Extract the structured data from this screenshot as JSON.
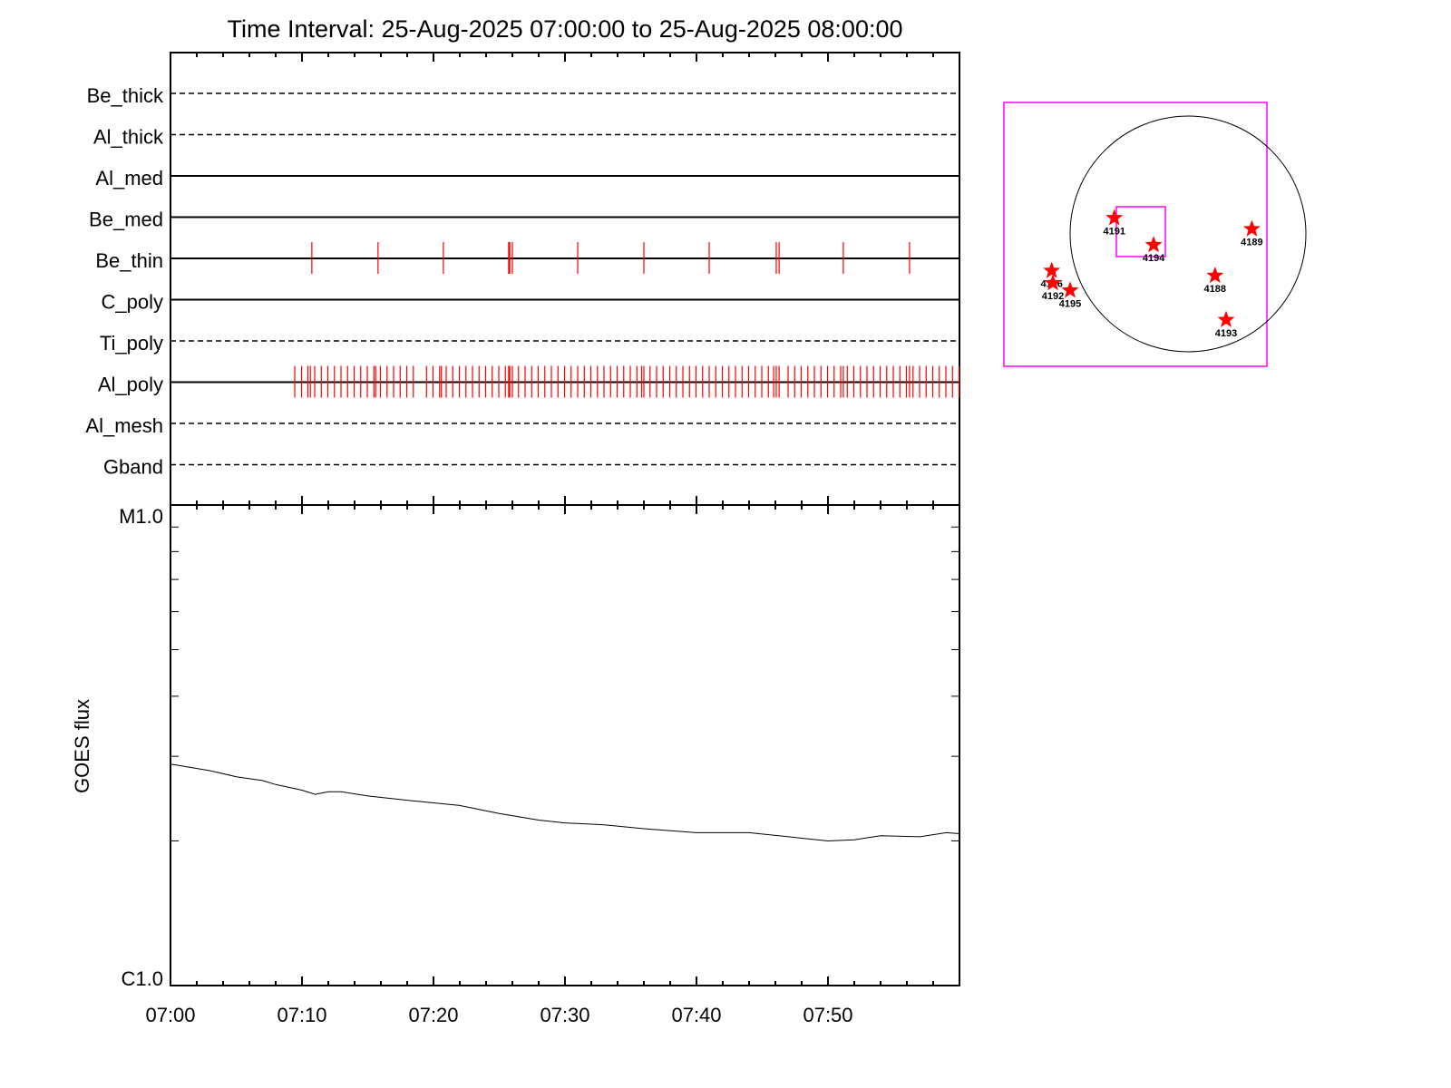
{
  "chart_data": [
    {
      "type": "event-raster",
      "title": "Time Interval: 25-Aug-2025 07:00:00 to 25-Aug-2025 08:00:00",
      "x_range": [
        "07:00",
        "08:00"
      ],
      "event_color": "#ff0000",
      "rows": [
        {
          "label": "Be_thick",
          "style": "dashed",
          "events": []
        },
        {
          "label": "Al_thick",
          "style": "dashed",
          "events": []
        },
        {
          "label": "Al_med",
          "style": "solid",
          "events": []
        },
        {
          "label": "Be_med",
          "style": "solid",
          "events": []
        },
        {
          "label": "Be_thin",
          "style": "solid",
          "events": [
            "07:10:45",
            "07:15:47",
            "07:20:45",
            "07:25:43",
            "07:25:48",
            "07:26:00",
            "07:30:58",
            "07:36:00",
            "07:40:58",
            "07:46:04",
            "07:46:17",
            "07:51:10",
            "07:56:12"
          ]
        },
        {
          "label": "C_poly",
          "style": "solid",
          "events": []
        },
        {
          "label": "Ti_poly",
          "style": "dashed",
          "events": []
        },
        {
          "label": "Al_poly",
          "style": "solid",
          "events": [
            "07:09:27",
            "07:09:58",
            "07:10:27",
            "07:10:38",
            "07:10:58",
            "07:11:28",
            "07:11:58",
            "07:12:28",
            "07:12:58",
            "07:13:28",
            "07:13:58",
            "07:14:28",
            "07:14:58",
            "07:15:28",
            "07:15:36",
            "07:15:58",
            "07:16:28",
            "07:16:58",
            "07:17:28",
            "07:17:58",
            "07:18:28",
            "07:19:28",
            "07:19:58",
            "07:20:28",
            "07:20:36",
            "07:20:58",
            "07:21:28",
            "07:21:58",
            "07:22:28",
            "07:22:58",
            "07:23:28",
            "07:23:58",
            "07:24:28",
            "07:24:58",
            "07:25:28",
            "07:25:43",
            "07:25:48",
            "07:26:00",
            "07:26:28",
            "07:26:58",
            "07:27:28",
            "07:27:58",
            "07:28:28",
            "07:28:58",
            "07:29:28",
            "07:29:58",
            "07:30:28",
            "07:30:58",
            "07:31:28",
            "07:31:58",
            "07:32:28",
            "07:32:58",
            "07:33:28",
            "07:33:58",
            "07:34:28",
            "07:34:58",
            "07:35:28",
            "07:35:50",
            "07:36:00",
            "07:36:28",
            "07:36:58",
            "07:37:28",
            "07:37:58",
            "07:38:28",
            "07:38:58",
            "07:39:28",
            "07:39:58",
            "07:40:28",
            "07:40:58",
            "07:41:28",
            "07:41:58",
            "07:42:28",
            "07:42:58",
            "07:43:28",
            "07:43:58",
            "07:44:28",
            "07:44:58",
            "07:45:28",
            "07:45:52",
            "07:46:04",
            "07:46:17",
            "07:46:58",
            "07:47:28",
            "07:47:58",
            "07:48:28",
            "07:48:58",
            "07:49:28",
            "07:49:58",
            "07:50:28",
            "07:50:58",
            "07:51:10",
            "07:51:28",
            "07:51:58",
            "07:52:28",
            "07:52:58",
            "07:53:28",
            "07:53:58",
            "07:54:28",
            "07:54:58",
            "07:55:28",
            "07:55:58",
            "07:56:12",
            "07:56:28",
            "07:56:58",
            "07:57:28",
            "07:57:58",
            "07:58:28",
            "07:58:58",
            "07:59:28",
            "07:59:58"
          ]
        },
        {
          "label": "Al_mesh",
          "style": "dashed",
          "events": []
        },
        {
          "label": "Gband",
          "style": "dashed",
          "events": []
        }
      ]
    },
    {
      "type": "line",
      "ylabel": "GOES flux",
      "y_scale": "log",
      "ylim": [
        1e-06,
        1e-05
      ],
      "y_tick_labels": [
        {
          "value": 1e-05,
          "label": "M1.0"
        },
        {
          "value": 1e-06,
          "label": "C1.0"
        }
      ],
      "x_range": [
        "07:00",
        "08:00"
      ],
      "x_tick_labels": [
        "07:00",
        "07:10",
        "07:20",
        "07:30",
        "07:40",
        "07:50"
      ],
      "line_color": "#000000",
      "x": [
        "07:00",
        "07:03",
        "07:05",
        "07:07",
        "07:08",
        "07:10",
        "07:11",
        "07:12",
        "07:13",
        "07:15",
        "07:18",
        "07:22",
        "07:25",
        "07:28",
        "07:30",
        "07:33",
        "07:36",
        "07:40",
        "07:44",
        "07:47",
        "07:50",
        "07:52",
        "07:54",
        "07:57",
        "07:59",
        "08:00"
      ],
      "y": [
        2.89e-06,
        2.8e-06,
        2.72e-06,
        2.67e-06,
        2.62e-06,
        2.55e-06,
        2.5e-06,
        2.53e-06,
        2.53e-06,
        2.48e-06,
        2.43e-06,
        2.37e-06,
        2.28e-06,
        2.21e-06,
        2.18e-06,
        2.16e-06,
        2.12e-06,
        2.08e-06,
        2.08e-06,
        2.04e-06,
        2e-06,
        2.01e-06,
        2.05e-06,
        2.04e-06,
        2.08e-06,
        2.07e-06
      ]
    }
  ],
  "sun_map": {
    "frame_color": "#ff00ff",
    "marker_color": "#ff0000",
    "regions": [
      {
        "label": "4191",
        "x_arcsec": -600,
        "y_arcsec": 130
      },
      {
        "label": "4194",
        "x_arcsec": -280,
        "y_arcsec": -90
      },
      {
        "label": "4189",
        "x_arcsec": 520,
        "y_arcsec": 40
      },
      {
        "label": "4188",
        "x_arcsec": 220,
        "y_arcsec": -340
      },
      {
        "label": "4193",
        "x_arcsec": 310,
        "y_arcsec": -700
      },
      {
        "label": "4196",
        "x_arcsec": -1110,
        "y_arcsec": -300
      },
      {
        "label": "4192",
        "x_arcsec": -1100,
        "y_arcsec": -400
      },
      {
        "label": "4195",
        "x_arcsec": -960,
        "y_arcsec": -460
      }
    ]
  }
}
